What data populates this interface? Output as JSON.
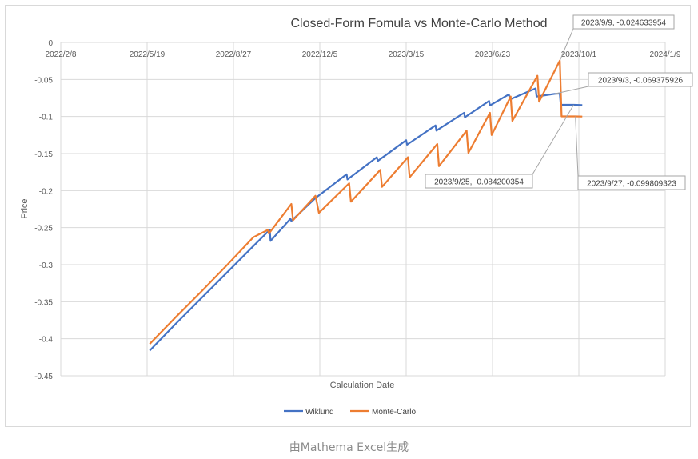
{
  "caption": "由Mathema Excel生成",
  "chart_data": {
    "type": "line",
    "title": "Closed-Form Fomula vs Monte-Carlo Method",
    "xlabel": "Calculation Date",
    "ylabel": "Price",
    "x_ticks": [
      "2022/2/8",
      "2022/5/19",
      "2022/8/27",
      "2022/12/5",
      "2023/3/15",
      "2023/6/23",
      "2023/10/1",
      "2024/1/9"
    ],
    "x_range": [
      "2022/2/8",
      "2024/1/9"
    ],
    "y_ticks": [
      "0",
      "-0.05",
      "-0.1",
      "-0.15",
      "-0.2",
      "-0.25",
      "-0.3",
      "-0.35",
      "-0.4",
      "-0.45"
    ],
    "ylim": [
      -0.45,
      0
    ],
    "grid": true,
    "legend_position": "bottom",
    "series": [
      {
        "name": "Wiklund",
        "color": "#4472c4",
        "points": [
          [
            "2022/5/22",
            -0.416
          ],
          [
            "2022/6/21",
            -0.38
          ],
          [
            "2022/7/21",
            -0.345
          ],
          [
            "2022/8/20",
            -0.31
          ],
          [
            "2022/9/19",
            -0.275
          ],
          [
            "2022/10/8",
            -0.253
          ],
          [
            "2022/10/9",
            -0.268
          ],
          [
            "2022/11/1",
            -0.238
          ],
          [
            "2022/11/2",
            -0.241
          ],
          [
            "2022/11/30",
            -0.21
          ],
          [
            "2023/1/5",
            -0.178
          ],
          [
            "2023/1/6",
            -0.185
          ],
          [
            "2023/2/9",
            -0.155
          ],
          [
            "2023/2/10",
            -0.16
          ],
          [
            "2023/3/15",
            -0.132
          ],
          [
            "2023/3/16",
            -0.138
          ],
          [
            "2023/4/18",
            -0.112
          ],
          [
            "2023/4/19",
            -0.119
          ],
          [
            "2023/5/21",
            -0.095
          ],
          [
            "2023/5/22",
            -0.101
          ],
          [
            "2023/6/19",
            -0.079
          ],
          [
            "2023/6/20",
            -0.085
          ],
          [
            "2023/7/12",
            -0.07
          ],
          [
            "2023/7/13",
            -0.077
          ],
          [
            "2023/8/12",
            -0.062
          ],
          [
            "2023/8/13",
            -0.073
          ],
          [
            "2023/9/3",
            -0.0694
          ],
          [
            "2023/9/9",
            -0.069
          ],
          [
            "2023/9/10",
            -0.0842
          ],
          [
            "2023/9/25",
            -0.0842
          ],
          [
            "2023/10/5",
            -0.0845
          ]
        ]
      },
      {
        "name": "Monte-Carlo",
        "color": "#ed7d31",
        "points": [
          [
            "2022/5/22",
            -0.407
          ],
          [
            "2022/6/21",
            -0.371
          ],
          [
            "2022/7/21",
            -0.336
          ],
          [
            "2022/8/20",
            -0.3
          ],
          [
            "2022/9/19",
            -0.263
          ],
          [
            "2022/10/6",
            -0.253
          ],
          [
            "2022/10/7",
            -0.258
          ],
          [
            "2022/11/2",
            -0.218
          ],
          [
            "2022/11/4",
            -0.24
          ],
          [
            "2022/11/30",
            -0.207
          ],
          [
            "2022/12/4",
            -0.23
          ],
          [
            "2023/1/8",
            -0.19
          ],
          [
            "2023/1/10",
            -0.215
          ],
          [
            "2023/2/13",
            -0.172
          ],
          [
            "2023/2/15",
            -0.195
          ],
          [
            "2023/3/17",
            -0.155
          ],
          [
            "2023/3/19",
            -0.182
          ],
          [
            "2023/4/20",
            -0.137
          ],
          [
            "2023/4/22",
            -0.167
          ],
          [
            "2023/5/24",
            -0.119
          ],
          [
            "2023/5/26",
            -0.149
          ],
          [
            "2023/6/20",
            -0.095
          ],
          [
            "2023/6/22",
            -0.125
          ],
          [
            "2023/7/14",
            -0.073
          ],
          [
            "2023/7/16",
            -0.106
          ],
          [
            "2023/8/14",
            -0.045
          ],
          [
            "2023/8/16",
            -0.08
          ],
          [
            "2023/9/9",
            -0.0246
          ],
          [
            "2023/9/11",
            -0.0998
          ],
          [
            "2023/9/27",
            -0.0998
          ],
          [
            "2023/10/5",
            -0.1
          ]
        ]
      }
    ],
    "annotations": [
      {
        "label": "2023/9/9, -0.024633954",
        "x": "2023/9/9",
        "y": -0.024633954
      },
      {
        "label": "2023/9/3, -0.069375926",
        "x": "2023/9/3",
        "y": -0.069375926
      },
      {
        "label": "2023/9/25, -0.084200354",
        "x": "2023/9/25",
        "y": -0.084200354
      },
      {
        "label": "2023/9/27, -0.099809323",
        "x": "2023/9/27",
        "y": -0.099809323
      }
    ]
  }
}
